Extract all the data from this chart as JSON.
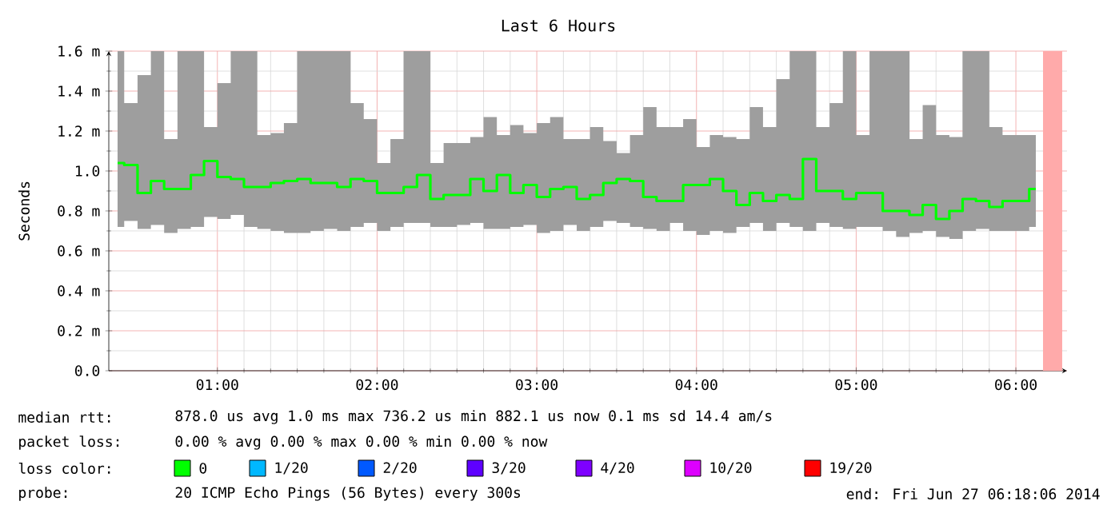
{
  "chart_data": {
    "type": "step",
    "title": "Last 6 Hours",
    "ylabel": "Seconds",
    "x": [
      0.375,
      0.458,
      0.542,
      0.625,
      0.708,
      0.792,
      0.875,
      0.958,
      1.042,
      1.125,
      1.208,
      1.292,
      1.375,
      1.458,
      1.542,
      1.625,
      1.708,
      1.792,
      1.875,
      1.958,
      2.042,
      2.125,
      2.208,
      2.292,
      2.375,
      2.458,
      2.542,
      2.625,
      2.708,
      2.792,
      2.875,
      2.958,
      3.042,
      3.125,
      3.208,
      3.292,
      3.375,
      3.458,
      3.542,
      3.625,
      3.708,
      3.792,
      3.875,
      3.958,
      4.042,
      4.125,
      4.208,
      4.292,
      4.375,
      4.458,
      4.542,
      4.625,
      4.708,
      4.792,
      4.875,
      4.958,
      5.042,
      5.125,
      5.208,
      5.292,
      5.375,
      5.458,
      5.542,
      5.625,
      5.708,
      5.792,
      5.875,
      5.958,
      6.042,
      6.125
    ],
    "series": [
      {
        "name": "0",
        "color": "#00ff00",
        "values": [
          1.04,
          1.03,
          0.89,
          0.95,
          0.91,
          0.91,
          0.98,
          1.05,
          0.97,
          0.96,
          0.92,
          0.92,
          0.94,
          0.95,
          0.96,
          0.94,
          0.94,
          0.92,
          0.96,
          0.95,
          0.89,
          0.89,
          0.92,
          0.98,
          0.86,
          0.88,
          0.88,
          0.96,
          0.9,
          0.98,
          0.89,
          0.93,
          0.87,
          0.91,
          0.92,
          0.86,
          0.88,
          0.94,
          0.96,
          0.95,
          0.87,
          0.85,
          0.85,
          0.93,
          0.93,
          0.96,
          0.9,
          0.83,
          0.89,
          0.85,
          0.88,
          0.86,
          1.06,
          0.9,
          0.9,
          0.86,
          0.89,
          0.89,
          0.8,
          0.8,
          0.78,
          0.83,
          0.76,
          0.8,
          0.86,
          0.85,
          0.82,
          0.85,
          0.85,
          0.91
        ],
        "lower": [
          0.72,
          0.75,
          0.71,
          0.73,
          0.69,
          0.71,
          0.72,
          0.77,
          0.76,
          0.78,
          0.72,
          0.71,
          0.7,
          0.69,
          0.69,
          0.7,
          0.71,
          0.7,
          0.72,
          0.74,
          0.7,
          0.72,
          0.74,
          0.74,
          0.72,
          0.72,
          0.73,
          0.74,
          0.71,
          0.71,
          0.72,
          0.73,
          0.69,
          0.7,
          0.73,
          0.7,
          0.72,
          0.75,
          0.74,
          0.72,
          0.71,
          0.7,
          0.74,
          0.7,
          0.68,
          0.7,
          0.69,
          0.72,
          0.74,
          0.7,
          0.74,
          0.72,
          0.7,
          0.74,
          0.72,
          0.71,
          0.72,
          0.72,
          0.7,
          0.67,
          0.69,
          0.7,
          0.67,
          0.66,
          0.7,
          0.71,
          0.7,
          0.7,
          0.7,
          0.72
        ],
        "upper": [
          1.6,
          1.34,
          1.48,
          1.6,
          1.16,
          1.6,
          1.6,
          1.22,
          1.44,
          1.6,
          1.6,
          1.18,
          1.19,
          1.24,
          1.6,
          1.6,
          1.6,
          1.6,
          1.34,
          1.26,
          1.04,
          1.16,
          1.6,
          1.6,
          1.04,
          1.14,
          1.14,
          1.17,
          1.27,
          1.18,
          1.23,
          1.19,
          1.24,
          1.27,
          1.16,
          1.16,
          1.22,
          1.15,
          1.09,
          1.18,
          1.32,
          1.22,
          1.22,
          1.26,
          1.12,
          1.18,
          1.17,
          1.16,
          1.32,
          1.22,
          1.46,
          1.6,
          1.6,
          1.22,
          1.34,
          1.6,
          1.18,
          1.6,
          1.6,
          1.6,
          1.16,
          1.33,
          1.18,
          1.17,
          1.6,
          1.6,
          1.22,
          1.18,
          1.18,
          1.18
        ]
      },
      {
        "name": "1/20",
        "color": "#00b8ff",
        "values": [
          null,
          null,
          null,
          null,
          null,
          null,
          null,
          null,
          null,
          null,
          null,
          null,
          null,
          null,
          null,
          null,
          null,
          null,
          null,
          null,
          null,
          null,
          null,
          null,
          null,
          null,
          null,
          null,
          null,
          null,
          null,
          null,
          null,
          null,
          null,
          null,
          null,
          null,
          null,
          null,
          null,
          null,
          null,
          null,
          null,
          null,
          null,
          null,
          null,
          null,
          null,
          null,
          null,
          null,
          null,
          null,
          null,
          null,
          null,
          null,
          null,
          null,
          null,
          null,
          null,
          null,
          null,
          null,
          null,
          null
        ]
      },
      {
        "name": "2/20",
        "color": "#0059ff",
        "values": [
          null,
          null,
          null,
          null,
          null,
          null,
          null,
          null,
          null,
          null,
          null,
          null,
          null,
          null,
          null,
          null,
          null,
          null,
          null,
          null,
          null,
          null,
          null,
          null,
          null,
          null,
          null,
          null,
          null,
          null,
          null,
          null,
          null,
          null,
          null,
          null,
          null,
          null,
          null,
          null,
          null,
          null,
          null,
          null,
          null,
          null,
          null,
          null,
          null,
          null,
          null,
          null,
          null,
          null,
          null,
          null,
          null,
          null,
          null,
          null,
          null,
          null,
          null,
          null,
          null,
          null,
          null,
          null,
          null,
          null
        ]
      },
      {
        "name": "3/20",
        "color": "#5e00ff",
        "values": [
          null,
          null,
          null,
          null,
          null,
          null,
          null,
          null,
          null,
          null,
          null,
          null,
          null,
          null,
          null,
          null,
          null,
          null,
          null,
          null,
          null,
          null,
          null,
          null,
          null,
          null,
          null,
          null,
          null,
          null,
          null,
          null,
          null,
          null,
          null,
          null,
          null,
          null,
          null,
          null,
          null,
          null,
          null,
          null,
          null,
          null,
          null,
          null,
          null,
          null,
          null,
          null,
          null,
          null,
          null,
          null,
          null,
          null,
          null,
          null,
          null,
          null,
          null,
          null,
          null,
          null,
          null,
          null,
          null,
          null
        ]
      },
      {
        "name": "4/20",
        "color": "#7e00ff",
        "values": [
          null,
          null,
          null,
          null,
          null,
          null,
          null,
          null,
          null,
          null,
          null,
          null,
          null,
          null,
          null,
          null,
          null,
          null,
          null,
          null,
          null,
          null,
          null,
          null,
          null,
          null,
          null,
          null,
          null,
          null,
          null,
          null,
          null,
          null,
          null,
          null,
          null,
          null,
          null,
          null,
          null,
          null,
          null,
          null,
          null,
          null,
          null,
          null,
          null,
          null,
          null,
          null,
          null,
          null,
          null,
          null,
          null,
          null,
          null,
          null,
          null,
          null,
          null,
          null,
          null,
          null,
          null,
          null,
          null,
          null
        ]
      },
      {
        "name": "10/20",
        "color": "#dd00ff",
        "values": [
          null,
          null,
          null,
          null,
          null,
          null,
          null,
          null,
          null,
          null,
          null,
          null,
          null,
          null,
          null,
          null,
          null,
          null,
          null,
          null,
          null,
          null,
          null,
          null,
          null,
          null,
          null,
          null,
          null,
          null,
          null,
          null,
          null,
          null,
          null,
          null,
          null,
          null,
          null,
          null,
          null,
          null,
          null,
          null,
          null,
          null,
          null,
          null,
          null,
          null,
          null,
          null,
          null,
          null,
          null,
          null,
          null,
          null,
          null,
          null,
          null,
          null,
          null,
          null,
          null,
          null,
          null,
          null,
          null,
          null
        ]
      },
      {
        "name": "19/20",
        "color": "#ff0000",
        "values": [
          null,
          null,
          null,
          null,
          null,
          null,
          null,
          null,
          null,
          null,
          null,
          null,
          null,
          null,
          null,
          null,
          null,
          null,
          null,
          null,
          null,
          null,
          null,
          null,
          null,
          null,
          null,
          null,
          null,
          null,
          null,
          null,
          null,
          null,
          null,
          null,
          null,
          null,
          null,
          null,
          null,
          null,
          null,
          null,
          null,
          null,
          null,
          null,
          null,
          null,
          null,
          null,
          null,
          null,
          null,
          null,
          null,
          null,
          null,
          null,
          null,
          null,
          null,
          null,
          null,
          null,
          null,
          null,
          null,
          null
        ]
      }
    ],
    "xlim": [
      0.32,
      6.32
    ],
    "xticks": [
      {
        "value": 1,
        "label": "01:00"
      },
      {
        "value": 2,
        "label": "02:00"
      },
      {
        "value": 3,
        "label": "03:00"
      },
      {
        "value": 4,
        "label": "04:00"
      },
      {
        "value": 5,
        "label": "05:00"
      },
      {
        "value": 6,
        "label": "06:00"
      }
    ],
    "ylim": [
      0,
      1.6
    ],
    "yticks": [
      {
        "value": 0,
        "label": "0.0"
      },
      {
        "value": 0.2,
        "label": "0.2 m"
      },
      {
        "value": 0.4,
        "label": "0.4 m"
      },
      {
        "value": 0.6,
        "label": "0.6 m"
      },
      {
        "value": 0.8,
        "label": "0.8 m"
      },
      {
        "value": 1.0,
        "label": "1.0"
      },
      {
        "value": 1.2,
        "label": "1.2 m"
      },
      {
        "value": 1.4,
        "label": "1.4 m"
      },
      {
        "value": 1.6,
        "label": "1.6 m"
      }
    ],
    "bands": [
      {
        "axis": "x",
        "from": 6.17,
        "to": 6.29,
        "color": "#ffaaaa"
      }
    ],
    "grid": true,
    "legend": "bottom",
    "annotations": [
      "median rtt:",
      "878.0 us avg   1.0 ms max   736.2 us min   882.1 us now   0.1 ms sd   14.4   am/s",
      "packet loss:",
      "0.00 % avg   0.00 % max   0.00 % min   0.00 % now",
      "loss color:",
      "probe:",
      "20 ICMP Echo Pings (56 Bytes) every 300s",
      "end: Fri Jun 27 06:18:06 2014"
    ]
  }
}
